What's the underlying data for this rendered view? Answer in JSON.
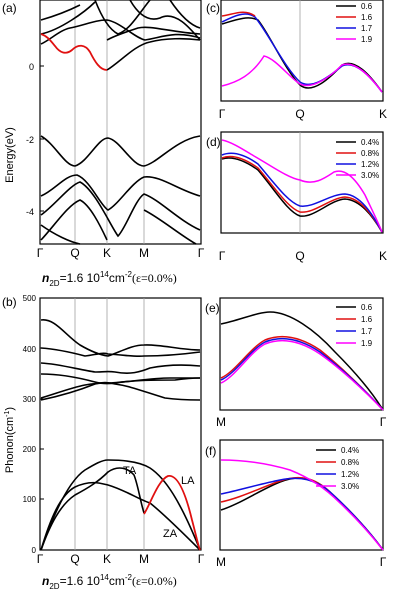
{
  "colors": {
    "black": "#000000",
    "red": "#e01010",
    "blue": "#1010e0",
    "magenta": "#ff00ff",
    "vline": "#a0a0a0"
  },
  "panels": {
    "a": {
      "label": "(a)",
      "ylabel": "Energy(eV)",
      "yticks": [
        "0",
        "-2",
        "-4"
      ],
      "xticks": [
        "Γ",
        "Q",
        "K",
        "M",
        "Γ"
      ],
      "caption_n": "n",
      "caption_sub": "2D",
      "caption_rest": "=1.6 10",
      "caption_sup": "14",
      "caption_cm": "cm",
      "caption_sup2": "-2",
      "caption_eps": "(ε=0.0%)"
    },
    "b": {
      "label": "(b)",
      "ylabel": "Phonon(cm",
      "ylabel_sup": "-1",
      "ylabel_end": ")",
      "yticks": [
        "500",
        "400",
        "300",
        "200",
        "100",
        "0"
      ],
      "xticks": [
        "Γ",
        "Q",
        "K",
        "M",
        "Γ"
      ],
      "annotations": [
        "TA",
        "LA",
        "ZA"
      ],
      "caption_n": "n",
      "caption_sub": "2D",
      "caption_rest": "=1.6 10",
      "caption_sup": "14",
      "caption_cm": "cm",
      "caption_sup2": "-2",
      "caption_eps": "(ε=0.0%)"
    },
    "c": {
      "label": "(c)",
      "xticks": [
        "Γ",
        "Q",
        "K"
      ],
      "legend": [
        "0.6",
        "1.6",
        "1.7",
        "1.9"
      ]
    },
    "d": {
      "label": "(d)",
      "xticks": [
        "Γ",
        "Q",
        "K"
      ],
      "legend": [
        "0.4%",
        "0.8%",
        "1.2%",
        "3.0%"
      ]
    },
    "e": {
      "label": "(e)",
      "xticks": [
        "M",
        "Γ"
      ],
      "legend": [
        "0.6",
        "1.6",
        "1.7",
        "1.9"
      ]
    },
    "f": {
      "label": "(f)",
      "xticks": [
        "M",
        "Γ"
      ],
      "legend": [
        "0.4%",
        "0.8%",
        "1.2%",
        "3.0%"
      ]
    }
  },
  "chart_data": [
    {
      "type": "line",
      "panel": "a",
      "ylabel": "Energy(eV)",
      "ylim": [
        -5,
        1.3
      ],
      "x": [
        "Γ",
        "Q",
        "K",
        "M",
        "Γ"
      ],
      "series": [
        {
          "values": [
            0.8,
            0.3,
            0.0,
            0.6,
            1.0
          ]
        },
        {
          "values": [
            -2.0,
            -2.9,
            -2.0,
            -2.9,
            -2.0
          ]
        },
        {
          "values": [
            -3.6,
            -3.8,
            -4.5,
            -3.8,
            -3.4
          ]
        },
        {
          "values": [
            -4.8,
            -4.2,
            -4.6,
            -4.2,
            -4.8
          ]
        }
      ]
    },
    {
      "type": "line",
      "panel": "b",
      "ylabel": "Phonon(cm-1)",
      "ylim": [
        0,
        500
      ],
      "x": [
        "Γ",
        "Q",
        "K",
        "M",
        "Γ"
      ],
      "series": [
        {
          "values": [
            0,
            165,
            185,
            180,
            0
          ]
        },
        {
          "values": [
            0,
            130,
            135,
            70,
            0
          ]
        },
        {
          "values": [
            0,
            125,
            165,
            120,
            0
          ]
        },
        {
          "values": [
            455,
            400,
            330,
            360,
            390
          ]
        },
        {
          "values": [
            295,
            340,
            330,
            340,
            295
          ]
        }
      ]
    },
    {
      "type": "line",
      "panel": "c",
      "x": [
        "Γ",
        "Q",
        "K"
      ],
      "series": [
        {
          "name": "0.6"
        },
        {
          "name": "1.6"
        },
        {
          "name": "1.7"
        },
        {
          "name": "1.9"
        }
      ]
    },
    {
      "type": "line",
      "panel": "d",
      "x": [
        "Γ",
        "Q",
        "K"
      ],
      "series": [
        {
          "name": "0.4%"
        },
        {
          "name": "0.8%"
        },
        {
          "name": "1.2%"
        },
        {
          "name": "3.0%"
        }
      ]
    },
    {
      "type": "line",
      "panel": "e",
      "x": [
        "M",
        "Γ"
      ],
      "series": [
        {
          "name": "0.6"
        },
        {
          "name": "1.6"
        },
        {
          "name": "1.7"
        },
        {
          "name": "1.9"
        }
      ]
    },
    {
      "type": "line",
      "panel": "f",
      "x": [
        "M",
        "Γ"
      ],
      "series": [
        {
          "name": "0.4%"
        },
        {
          "name": "0.8%"
        },
        {
          "name": "1.2%"
        },
        {
          "name": "3.0%"
        }
      ]
    }
  ]
}
